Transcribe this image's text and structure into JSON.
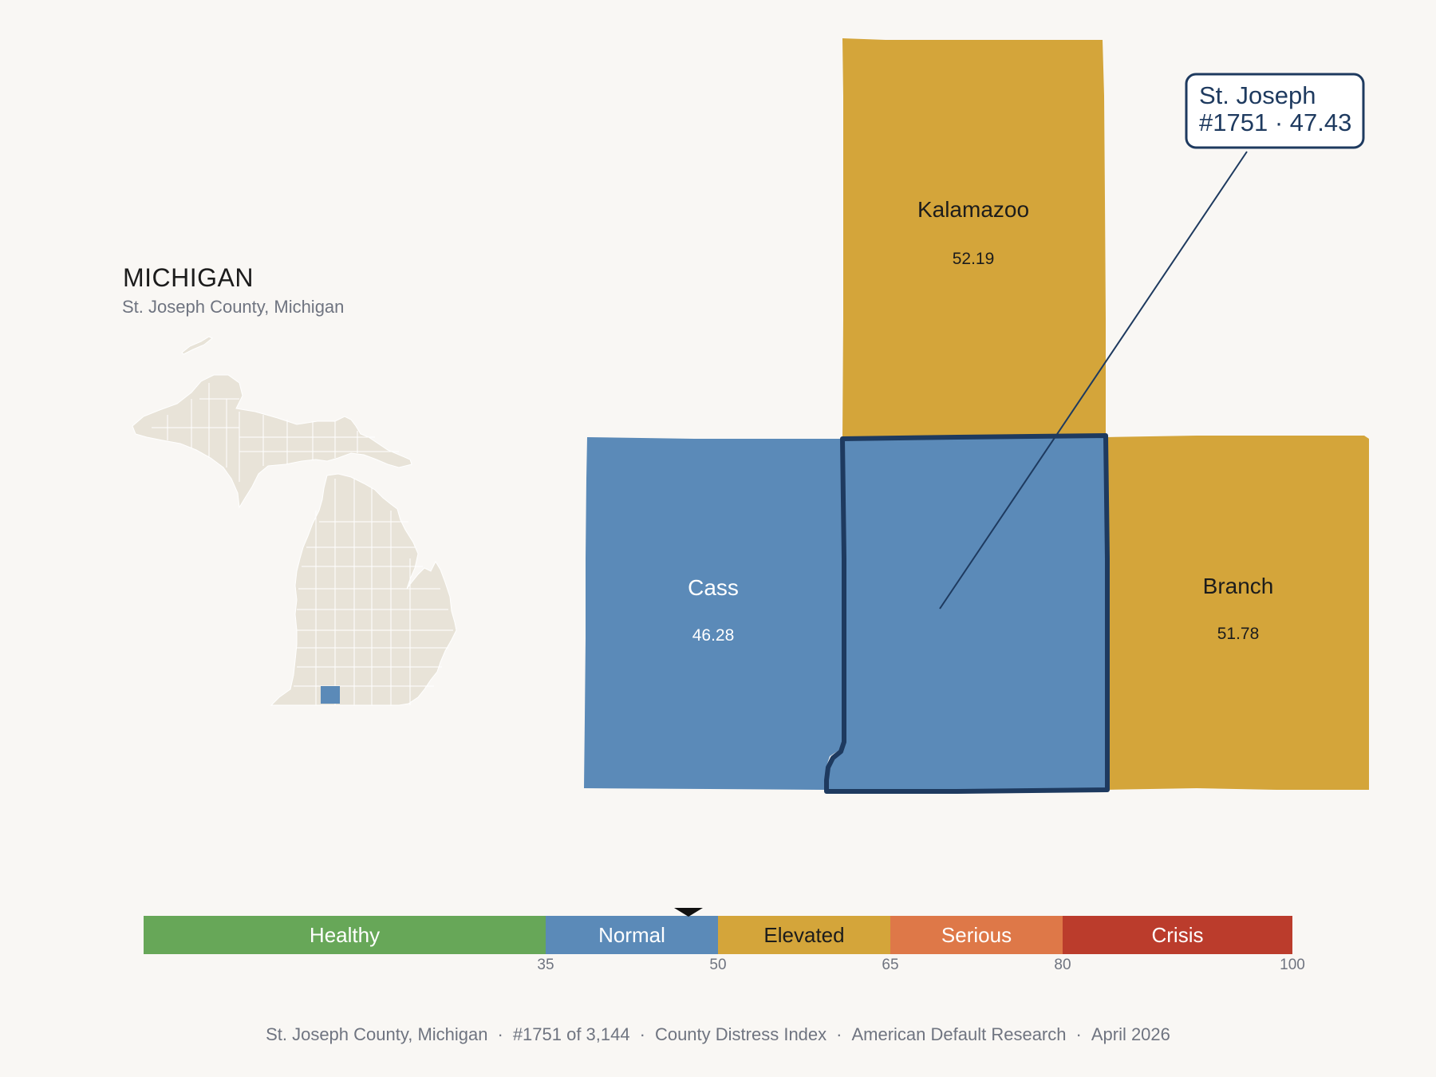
{
  "state": {
    "title": "MICHIGAN",
    "subtitle": "St. Joseph County, Michigan",
    "highlight_color": "#5b8ab8",
    "land_color": "#e8e3d8"
  },
  "counties": [
    {
      "name": "Kalamazoo",
      "score": "52.19",
      "color": "#d4a53a",
      "label_color": "#1c1c1c"
    },
    {
      "name": "Cass",
      "score": "46.28",
      "color": "#5b8ab8",
      "label_color": "#ffffff"
    },
    {
      "name": "Branch",
      "score": "51.78",
      "color": "#d4a53a",
      "label_color": "#1c1c1c"
    },
    {
      "name": "St. Joseph",
      "score": "47.43",
      "color": "#5b8ab8",
      "outline_color": "#1e3a5f"
    }
  ],
  "callout": {
    "line1": "St. Joseph",
    "line2": "#1751 · 47.43"
  },
  "scale": {
    "min": 0,
    "max": 100,
    "display_start": 0,
    "marker_value": 47.43,
    "bands": [
      {
        "label": "Healthy",
        "from": 0,
        "to": 35,
        "color": "#67a758",
        "text_color": "#ffffff"
      },
      {
        "label": "Normal",
        "from": 35,
        "to": 50,
        "color": "#5b8ab8",
        "text_color": "#ffffff"
      },
      {
        "label": "Elevated",
        "from": 50,
        "to": 65,
        "color": "#d4a53a",
        "text_color": "#1c1c1c"
      },
      {
        "label": "Serious",
        "from": 65,
        "to": 80,
        "color": "#de7848",
        "text_color": "#ffffff"
      },
      {
        "label": "Crisis",
        "from": 80,
        "to": 100,
        "color": "#bb3c2c",
        "text_color": "#ffffff"
      }
    ],
    "ticks": [
      "35",
      "50",
      "65",
      "80",
      "100"
    ]
  },
  "footer": {
    "county": "St. Joseph County, Michigan",
    "rank": "#1751 of 3,144",
    "index": "County Distress Index",
    "source": "American Default Research",
    "date": "April 2026",
    "separator": "·"
  }
}
